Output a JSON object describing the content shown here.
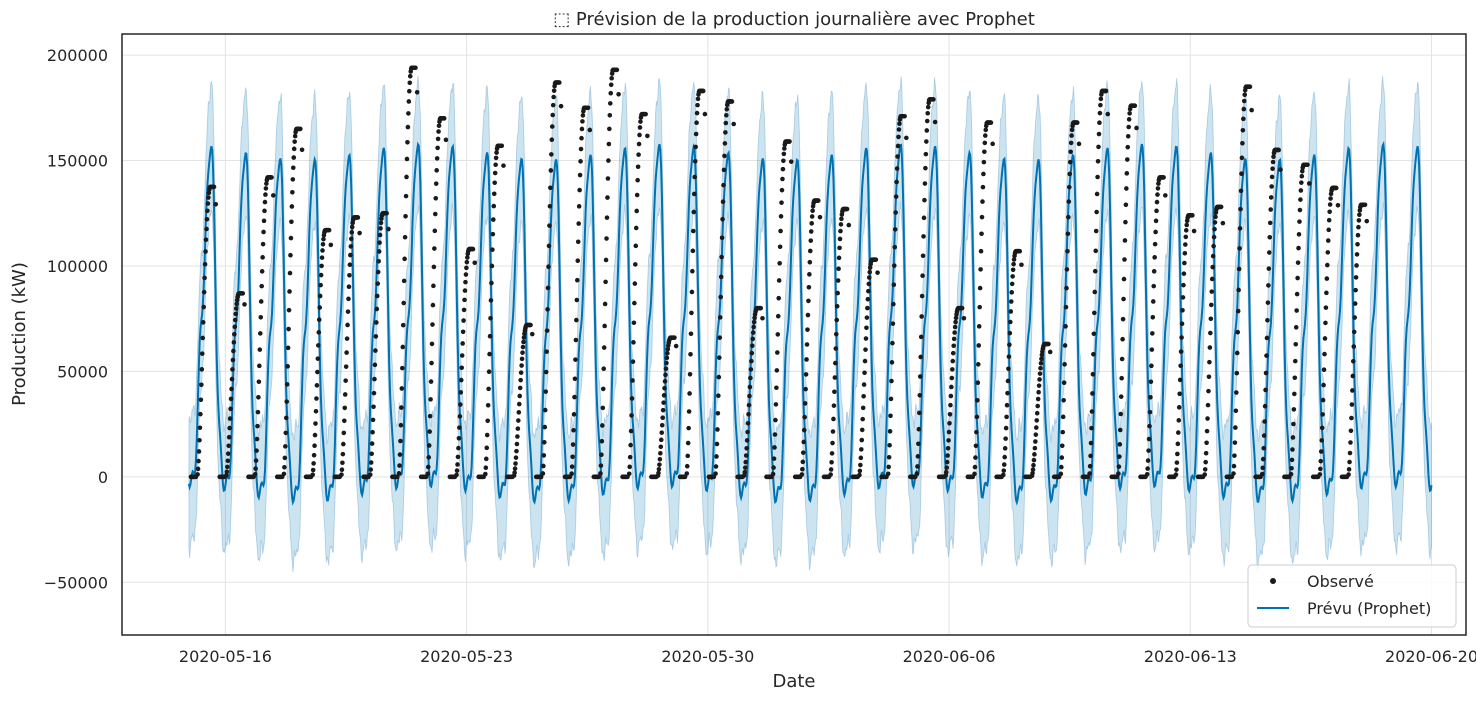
{
  "chart_data": {
    "type": "line",
    "title": "⬚ Prévision de la production journalière avec Prophet",
    "xlabel": "Date",
    "ylabel": "Production (kW)",
    "x_range": [
      "2020-05-13",
      "2020-06-21"
    ],
    "ylim": [
      -75000,
      210000
    ],
    "x_ticks": [
      "2020-05-16",
      "2020-05-23",
      "2020-05-30",
      "2020-06-06",
      "2020-06-13",
      "2020-06-20"
    ],
    "y_ticks": [
      -50000,
      0,
      50000,
      100000,
      150000,
      200000
    ],
    "y_tick_labels": [
      "−50000",
      "0",
      "50000",
      "100000",
      "150000",
      "200000"
    ],
    "grid": true,
    "legend_position": "bottom-right",
    "observed_start": "2020-05-15",
    "observed_end": "2020-06-17",
    "forecast_end": "2020-06-20",
    "daily_observed_peaks": [
      137500,
      87000,
      142000,
      165000,
      117000,
      123000,
      125000,
      194000,
      170000,
      108000,
      157000,
      72000,
      187000,
      175000,
      193000,
      172000,
      66000,
      183000,
      178000,
      80000,
      159000,
      131000,
      127000,
      103000,
      171000,
      179000,
      80000,
      168000,
      107000,
      63000,
      168000,
      183000,
      176000,
      142000,
      124000,
      128000,
      185000,
      155000,
      148000,
      137000,
      129000
    ],
    "series": [
      {
        "name": "Observé",
        "kind": "scatter",
        "color": "#1a1a1a"
      },
      {
        "name": "Prévu (Prophet)",
        "kind": "line",
        "color": "#0072B2",
        "interval_color": "#0072B2"
      }
    ]
  }
}
